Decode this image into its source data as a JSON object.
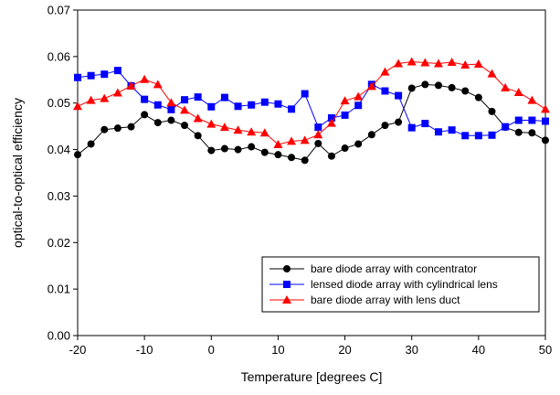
{
  "chart_data": {
    "type": "line",
    "xlabel": "Temperature [degrees C]",
    "ylabel": "optical-to-optical efficiency",
    "xlim": [
      -20,
      50
    ],
    "ylim": [
      0,
      0.07
    ],
    "x_ticks": [
      "-20",
      "-10",
      "0",
      "10",
      "20",
      "30",
      "40",
      "50"
    ],
    "y_ticks": [
      "0.00",
      "0.01",
      "0.02",
      "0.03",
      "0.04",
      "0.05",
      "0.06",
      "0.07"
    ],
    "grid": false,
    "legend_position": "bottom-right",
    "x": [
      -20,
      -18,
      -16,
      -14,
      -12,
      -10,
      -8,
      -6,
      -4,
      -2,
      0,
      2,
      4,
      6,
      8,
      10,
      12,
      14,
      16,
      18,
      20,
      22,
      24,
      26,
      28,
      30,
      32,
      34,
      36,
      38,
      40,
      42,
      44,
      46,
      48,
      50
    ],
    "series": [
      {
        "name": "bare diode array with concentrator",
        "color": "#000000",
        "marker": "circle",
        "values": [
          0.0389,
          0.0412,
          0.0443,
          0.0446,
          0.0449,
          0.0475,
          0.0458,
          0.0463,
          0.0452,
          0.043,
          0.0398,
          0.0402,
          0.04,
          0.0406,
          0.0394,
          0.0389,
          0.0383,
          0.0377,
          0.0413,
          0.0386,
          0.0403,
          0.0412,
          0.0432,
          0.0452,
          0.0459,
          0.0532,
          0.054,
          0.0538,
          0.0533,
          0.0526,
          0.0512,
          0.0482,
          0.0448,
          0.0437,
          0.0436,
          0.042
        ]
      },
      {
        "name": "lensed diode array with cylindrical lens",
        "color": "#0000ff",
        "marker": "square",
        "values": [
          0.0555,
          0.0559,
          0.0562,
          0.057,
          0.0537,
          0.0508,
          0.0496,
          0.0486,
          0.0507,
          0.0513,
          0.0492,
          0.0512,
          0.0493,
          0.0496,
          0.0502,
          0.0498,
          0.0487,
          0.052,
          0.0448,
          0.0468,
          0.0474,
          0.0495,
          0.054,
          0.0526,
          0.0516,
          0.0447,
          0.0456,
          0.0438,
          0.0442,
          0.043,
          0.043,
          0.0431,
          0.0449,
          0.0463,
          0.0463,
          0.0461
        ]
      },
      {
        "name": "bare diode array with lens duct",
        "color": "#ff0000",
        "marker": "triangle",
        "values": [
          0.0493,
          0.0506,
          0.051,
          0.0522,
          0.0537,
          0.0551,
          0.054,
          0.0501,
          0.0485,
          0.0467,
          0.0455,
          0.0448,
          0.0442,
          0.0438,
          0.0436,
          0.0411,
          0.0418,
          0.042,
          0.0432,
          0.0457,
          0.0505,
          0.0514,
          0.0536,
          0.0567,
          0.0585,
          0.0589,
          0.0587,
          0.0585,
          0.0588,
          0.0582,
          0.0584,
          0.0563,
          0.0533,
          0.0523,
          0.0506,
          0.0487
        ]
      }
    ]
  }
}
